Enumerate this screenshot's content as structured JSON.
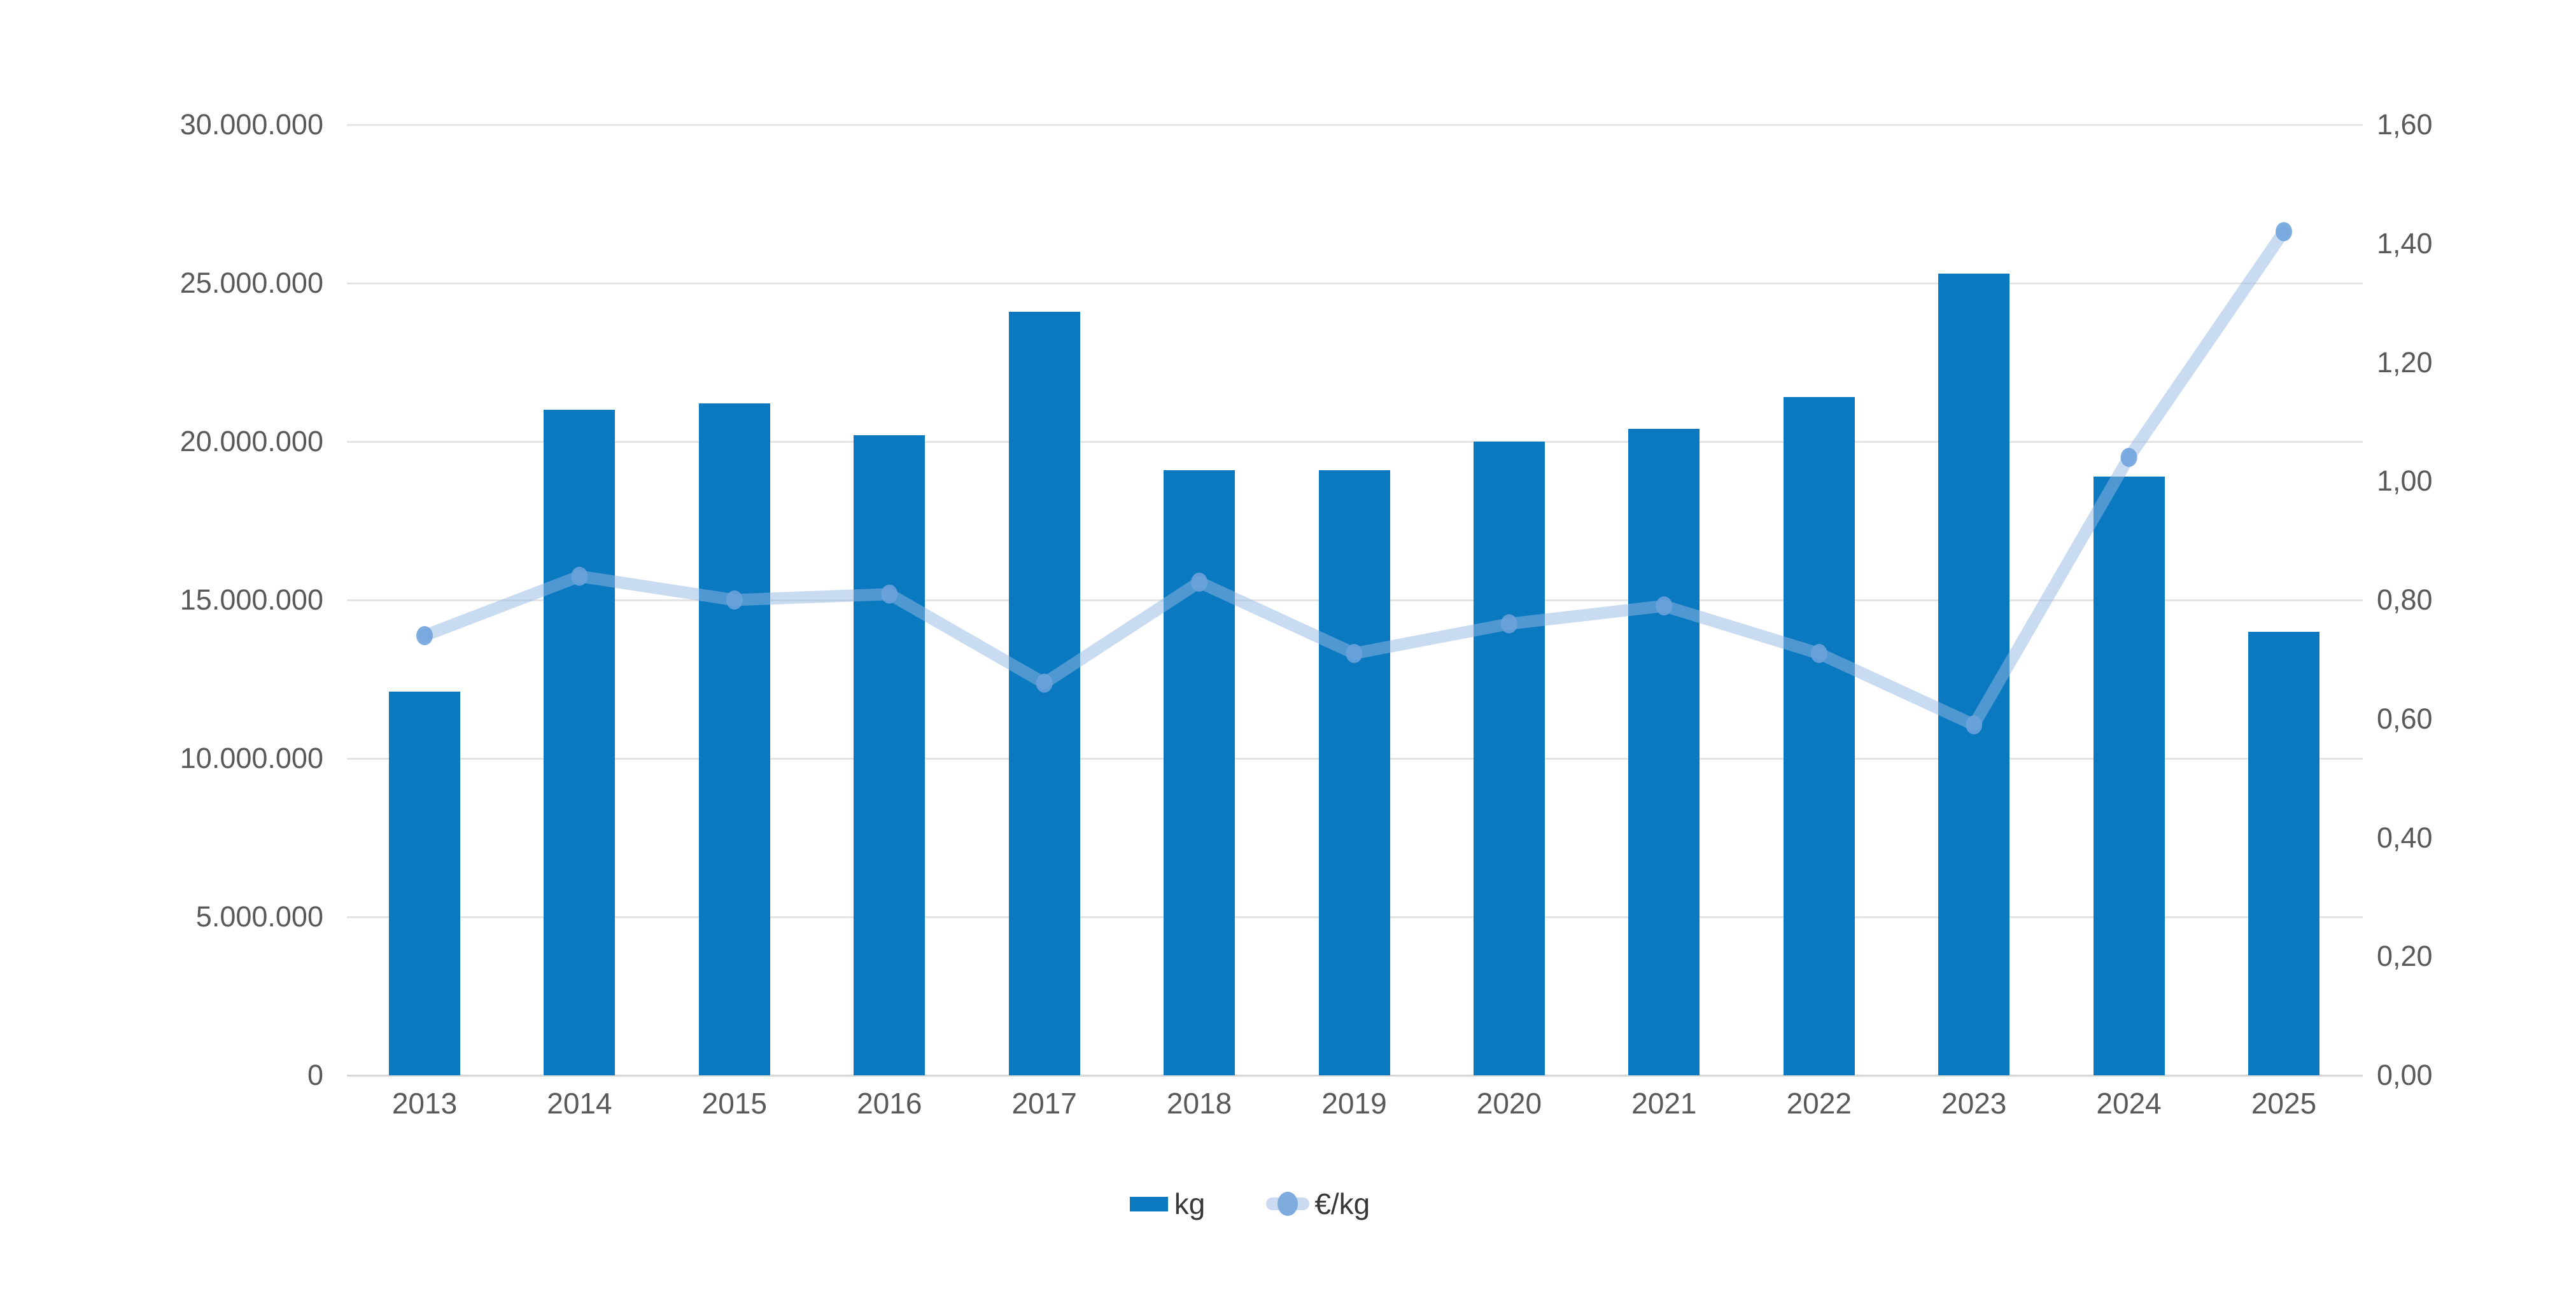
{
  "chart_data": {
    "type": "bar",
    "subtype": "combo-bar-line-dual-axis",
    "title": "",
    "categories": [
      "2013",
      "2014",
      "2015",
      "2016",
      "2017",
      "2018",
      "2019",
      "2020",
      "2021",
      "2022",
      "2023",
      "2024",
      "2025"
    ],
    "series": [
      {
        "name": "kg",
        "type": "bar",
        "axis": "left",
        "color": "#0a79c0",
        "values": [
          12100000,
          21000000,
          21200000,
          20200000,
          24100000,
          19100000,
          19100000,
          20000000,
          20400000,
          21400000,
          25300000,
          18900000,
          14000000
        ]
      },
      {
        "name": "€/kg",
        "type": "line",
        "axis": "right",
        "line_color": "#94b7e4",
        "line_opacity": 0.5,
        "marker_color": "#6da2db",
        "marker_opacity": 0.88,
        "values": [
          0.74,
          0.84,
          0.8,
          0.81,
          0.66,
          0.83,
          0.71,
          0.76,
          0.79,
          0.71,
          0.59,
          1.04,
          1.42
        ]
      }
    ],
    "left_axis": {
      "min": 0,
      "max": 30000000,
      "tick_step": 5000000,
      "tick_labels_top_to_bottom": [
        "30.000.000",
        "25.000.000",
        "20.000.000",
        "15.000.000",
        "10.000.000",
        "5.000.000",
        "0"
      ]
    },
    "right_axis": {
      "min": 0,
      "max": 1.6,
      "tick_step": 0.2,
      "tick_labels_top_to_bottom": [
        "1,60",
        "1,40",
        "1,20",
        "1,00",
        "0,80",
        "0,60",
        "0,40",
        "0,20",
        "0,00"
      ]
    },
    "grid": "horizontal-at-left-ticks",
    "gridline_color": "#e4e4e4",
    "baseline_color": "#d6d6d6",
    "axis_text_color": "#595959",
    "legend_text_color": "#383838",
    "legend_position": "bottom-center",
    "background": "#ffffff"
  }
}
